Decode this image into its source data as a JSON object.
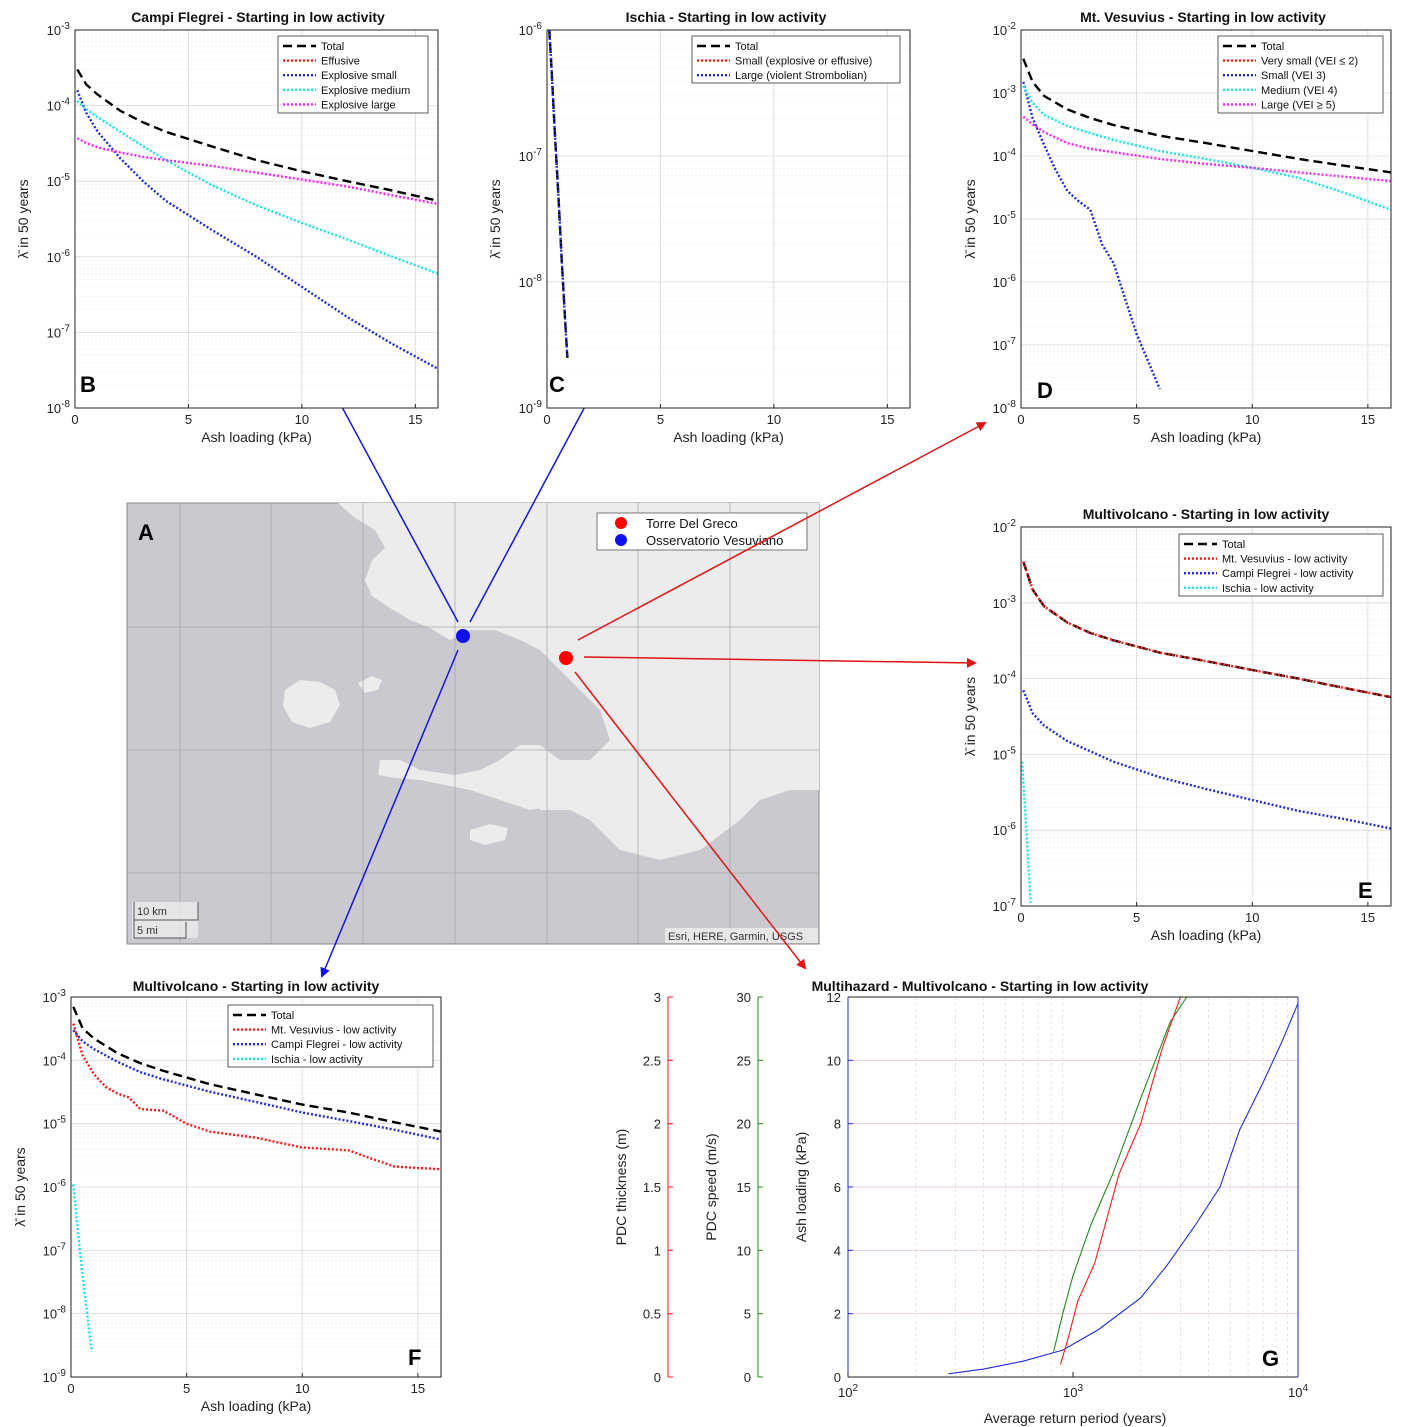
{
  "colors": {
    "total": "#000000",
    "red": "#ff1a1a",
    "blue": "#1f2bd6",
    "cyan": "#18e4e4",
    "magenta": "#ff22ff",
    "green": "#1e8a1e",
    "arrow_blue": "#1414e0",
    "arrow_red": "#e01414",
    "map_water": "#c9c9cf",
    "map_land": "#ececec"
  },
  "map": {
    "label": "A",
    "legend": [
      "Torre Del Greco",
      "Osservatorio Vesuviano"
    ],
    "scale_km": "10 km",
    "scale_mi": "5 mi",
    "attribution": "Esri, HERE, Garmin, USGS"
  },
  "chart_data": [
    {
      "id": "B",
      "type": "line",
      "scale": "semilogy",
      "title": "Campi Flegrei - Starting in low activity",
      "xlabel": "Ash loading (kPa)",
      "ylabel": "λ̄  in 50 years",
      "xlim": [
        0,
        16
      ],
      "ylim": [
        1e-08,
        0.001
      ],
      "xticks": [
        "0",
        "5",
        "10",
        "15"
      ],
      "yticks": [
        "10^-8",
        "10^-7",
        "10^-6",
        "10^-5",
        "10^-4",
        "10^-3"
      ],
      "legend": "top-right",
      "grid": true,
      "series": [
        {
          "name": "Total",
          "style": "dash",
          "color": "total",
          "x": [
            0.1,
            0.5,
            1,
            2,
            3,
            4,
            6,
            8,
            10,
            12,
            14,
            16
          ],
          "y": [
            0.0003,
            0.00019,
            0.00014,
            8.5e-05,
            6e-05,
            4.5e-05,
            2.9e-05,
            1.9e-05,
            1.35e-05,
            1e-05,
            7.5e-06,
            5.5e-06
          ]
        },
        {
          "name": "Effusive",
          "style": "dot",
          "color": "red",
          "x": [],
          "y": []
        },
        {
          "name": "Explosive small",
          "style": "dot",
          "color": "blue",
          "x": [
            0.1,
            0.5,
            1,
            2,
            3,
            4,
            6,
            8,
            10,
            12,
            14,
            16
          ],
          "y": [
            0.00016,
            8e-05,
            4.5e-05,
            2e-05,
            1e-05,
            5.5e-06,
            2.3e-06,
            1e-06,
            4e-07,
            1.6e-07,
            7e-08,
            3.3e-08
          ]
        },
        {
          "name": "Explosive medium",
          "style": "dot",
          "color": "cyan",
          "x": [
            0.1,
            0.5,
            1,
            2,
            3,
            4,
            6,
            8,
            10,
            12,
            14,
            16
          ],
          "y": [
            0.000115,
            9e-05,
            7e-05,
            4.5e-05,
            2.9e-05,
            1.9e-05,
            9e-06,
            4.8e-06,
            2.8e-06,
            1.7e-06,
            1e-06,
            6e-07
          ]
        },
        {
          "name": "Explosive large",
          "style": "dot",
          "color": "magenta",
          "x": [
            0.1,
            0.5,
            1,
            2,
            3,
            4,
            6,
            8,
            10,
            12,
            14,
            16
          ],
          "y": [
            3.7e-05,
            3.2e-05,
            2.8e-05,
            2.4e-05,
            2.1e-05,
            1.9e-05,
            1.6e-05,
            1.3e-05,
            1.05e-05,
            8.5e-06,
            6.5e-06,
            5e-06
          ]
        }
      ]
    },
    {
      "id": "C",
      "type": "line",
      "scale": "semilogy",
      "title": "Ischia - Starting in low activity",
      "xlabel": "Ash loading (kPa)",
      "ylabel": "λ̄  in 50 years",
      "xlim": [
        0,
        16
      ],
      "ylim": [
        1e-09,
        1e-06
      ],
      "xticks": [
        "0",
        "5",
        "10",
        "15"
      ],
      "yticks": [
        "10^-9",
        "10^-8",
        "10^-7",
        "10^-6"
      ],
      "legend": "top-right",
      "grid": true,
      "series": [
        {
          "name": "Total",
          "style": "dash",
          "color": "total",
          "x": [
            0.1,
            0.2,
            0.35,
            0.5,
            0.65,
            0.8,
            0.9
          ],
          "y": [
            1e-06,
            5e-07,
            1.5e-07,
            5e-08,
            1.5e-08,
            5e-09,
            2.5e-09
          ]
        },
        {
          "name": "Small (explosive or effusive)",
          "style": "dot",
          "color": "red",
          "x": [],
          "y": []
        },
        {
          "name": "Large (violent Strombolian)",
          "style": "dot",
          "color": "blue",
          "x": [
            0.1,
            0.2,
            0.35,
            0.5,
            0.65,
            0.8,
            0.9
          ],
          "y": [
            1e-06,
            5e-07,
            1.5e-07,
            5e-08,
            1.5e-08,
            5e-09,
            2.5e-09
          ]
        }
      ]
    },
    {
      "id": "D",
      "type": "line",
      "scale": "semilogy",
      "title": "Mt. Vesuvius - Starting in low activity",
      "xlabel": "Ash loading (kPa)",
      "ylabel": "λ̄  in 50 years",
      "xlim": [
        0,
        16
      ],
      "ylim": [
        1e-08,
        0.01
      ],
      "xticks": [
        "0",
        "5",
        "10",
        "15"
      ],
      "yticks": [
        "10^-8",
        "10^-7",
        "10^-6",
        "10^-5",
        "10^-4",
        "10^-3",
        "10^-2"
      ],
      "legend": "top-right",
      "grid": true,
      "series": [
        {
          "name": "Total",
          "style": "dash",
          "color": "total",
          "x": [
            0.1,
            0.5,
            1,
            2,
            3,
            4,
            6,
            8,
            10,
            12,
            14,
            16
          ],
          "y": [
            0.0035,
            0.0015,
            0.0009,
            0.00055,
            0.0004,
            0.00031,
            0.00021,
            0.00016,
            0.00012,
            9e-05,
            7e-05,
            5.5e-05
          ]
        },
        {
          "name": "Very small (VEI ≤ 2)",
          "style": "dot",
          "color": "red",
          "x": [],
          "y": []
        },
        {
          "name": "Small (VEI 3)",
          "style": "dot",
          "color": "blue",
          "x": [
            0.1,
            0.5,
            1,
            1.5,
            2,
            2.5,
            3,
            3.5,
            4,
            5,
            6
          ],
          "y": [
            0.0015,
            0.0004,
            0.00015,
            6e-05,
            2.8e-05,
            1.9e-05,
            1.4e-05,
            4e-06,
            2e-06,
            1.5e-07,
            2e-08
          ]
        },
        {
          "name": "Medium (VEI 4)",
          "style": "dot",
          "color": "cyan",
          "x": [
            0.1,
            0.5,
            1,
            2,
            3,
            4,
            6,
            8,
            10,
            12,
            14,
            16
          ],
          "y": [
            0.0013,
            0.0007,
            0.00045,
            0.0003,
            0.00023,
            0.00018,
            0.00012,
            9e-05,
            6.5e-05,
            4.5e-05,
            2.6e-05,
            1.4e-05
          ]
        },
        {
          "name": "Large (VEI ≥ 5)",
          "style": "dot",
          "color": "magenta",
          "x": [
            0.1,
            0.5,
            1,
            2,
            3,
            4,
            6,
            8,
            10,
            12,
            14,
            16
          ],
          "y": [
            0.00042,
            0.00032,
            0.00024,
            0.00016,
            0.00013,
            0.000115,
            9e-05,
            7.5e-05,
            6.5e-05,
            5.5e-05,
            4.7e-05,
            4e-05
          ]
        }
      ]
    },
    {
      "id": "E",
      "type": "line",
      "scale": "semilogy",
      "title": "Multivolcano - Starting in low activity",
      "xlabel": "Ash loading (kPa)",
      "ylabel": "λ̄  in 50 years",
      "xlim": [
        0,
        16
      ],
      "ylim": [
        1e-07,
        0.01
      ],
      "xticks": [
        "0",
        "5",
        "10",
        "15"
      ],
      "yticks": [
        "10^-7",
        "10^-6",
        "10^-5",
        "10^-4",
        "10^-3",
        "10^-2"
      ],
      "legend": "top-right",
      "grid": true,
      "series": [
        {
          "name": "Total",
          "style": "dash",
          "color": "total",
          "x": [
            0.1,
            0.5,
            1,
            2,
            3,
            4,
            6,
            8,
            10,
            12,
            14,
            16
          ],
          "y": [
            0.0035,
            0.0015,
            0.0009,
            0.00055,
            0.0004,
            0.00032,
            0.00022,
            0.00017,
            0.00013,
            0.0001,
            7.5e-05,
            5.7e-05
          ]
        },
        {
          "name": "Mt. Vesuvius - low activity",
          "style": "dot",
          "color": "red",
          "x": [
            0.1,
            0.5,
            1,
            2,
            3,
            4,
            6,
            8,
            10,
            12,
            14,
            16
          ],
          "y": [
            0.0035,
            0.0015,
            0.0009,
            0.00055,
            0.0004,
            0.00032,
            0.00022,
            0.00017,
            0.00013,
            0.0001,
            7.5e-05,
            5.7e-05
          ]
        },
        {
          "name": "Campi Flegrei - low activity",
          "style": "dot",
          "color": "blue",
          "x": [
            0.1,
            0.5,
            1,
            2,
            3,
            4,
            6,
            8,
            10,
            12,
            14,
            16
          ],
          "y": [
            7e-05,
            3.5e-05,
            2.4e-05,
            1.5e-05,
            1.1e-05,
            8e-06,
            5e-06,
            3.5e-06,
            2.5e-06,
            1.8e-06,
            1.4e-06,
            1.05e-06
          ]
        },
        {
          "name": "Ischia - low activity",
          "style": "dot",
          "color": "cyan",
          "x": [
            0.05,
            0.15,
            0.25,
            0.35,
            0.42
          ],
          "y": [
            8e-06,
            2.5e-06,
            8e-07,
            2.5e-07,
            1.1e-07
          ]
        }
      ]
    },
    {
      "id": "F",
      "type": "line",
      "scale": "semilogy",
      "title": "Multivolcano - Starting in low activity",
      "xlabel": "Ash loading (kPa)",
      "ylabel": "λ̄  in 50 years",
      "xlim": [
        0,
        16
      ],
      "ylim": [
        1e-09,
        0.001
      ],
      "xticks": [
        "0",
        "5",
        "10",
        "15"
      ],
      "yticks": [
        "10^-9",
        "10^-8",
        "10^-7",
        "10^-6",
        "10^-5",
        "10^-4",
        "10^-3"
      ],
      "legend": "top-right",
      "grid": true,
      "series": [
        {
          "name": "Total",
          "style": "dash",
          "color": "total",
          "x": [
            0.1,
            0.5,
            1,
            2,
            3,
            4,
            6,
            8,
            10,
            12,
            14,
            16
          ],
          "y": [
            0.0007,
            0.00032,
            0.00022,
            0.00013,
            9e-05,
            6.8e-05,
            4.2e-05,
            2.9e-05,
            2e-05,
            1.5e-05,
            1.05e-05,
            7.5e-06
          ]
        },
        {
          "name": "Mt. Vesuvius - low activity",
          "style": "dot",
          "color": "red",
          "x": [
            0.1,
            0.5,
            1,
            1.5,
            2,
            2.5,
            3,
            4,
            5,
            6,
            8,
            10,
            12,
            13,
            14,
            16
          ],
          "y": [
            0.00038,
            0.00012,
            6e-05,
            3.8e-05,
            3e-05,
            2.6e-05,
            1.7e-05,
            1.6e-05,
            1e-05,
            7.5e-06,
            6e-06,
            4.2e-06,
            3.8e-06,
            2.8e-06,
            2.1e-06,
            1.9e-06
          ]
        },
        {
          "name": "Campi Flegrei - low activity",
          "style": "dot",
          "color": "blue",
          "x": [
            0.1,
            0.5,
            1,
            2,
            3,
            4,
            6,
            8,
            10,
            12,
            14,
            16
          ],
          "y": [
            0.0003,
            0.0002,
            0.00015,
            9.5e-05,
            6.5e-05,
            5e-05,
            3.2e-05,
            2.2e-05,
            1.5e-05,
            1.1e-05,
            8e-06,
            5.6e-06
          ]
        },
        {
          "name": "Ischia - low activity",
          "style": "dot",
          "color": "cyan",
          "x": [
            0.1,
            0.3,
            0.5,
            0.7,
            0.9
          ],
          "y": [
            1.1e-06,
            2e-07,
            4e-08,
            1e-08,
            2.5e-09
          ]
        }
      ]
    },
    {
      "id": "G",
      "type": "line",
      "scale": "semilogx",
      "title": "Multihazard - Multivolcano - Starting in low activity",
      "xlabel": "Average return period (years)",
      "xlim": [
        100,
        10000
      ],
      "xticks": [
        "10^2",
        "10^3",
        "10^4"
      ],
      "axes": [
        {
          "label": "PDC thickness (m)",
          "color": "red",
          "ylim": [
            0,
            3
          ],
          "ticks": [
            "0",
            "0.5",
            "1",
            "1.5",
            "2",
            "2.5",
            "3"
          ]
        },
        {
          "label": "PDC speed (m/s)",
          "color": "green",
          "ylim": [
            0,
            30
          ],
          "ticks": [
            "0",
            "5",
            "10",
            "15",
            "20",
            "25",
            "30"
          ]
        },
        {
          "label": "Ash loading (kPa)",
          "color": "blue",
          "ylim": [
            0,
            12
          ],
          "ticks": [
            "0",
            "2",
            "4",
            "6",
            "8",
            "10",
            "12"
          ]
        }
      ],
      "grid": true,
      "series": [
        {
          "axis": 2,
          "color": "blue",
          "x": [
            280,
            400,
            600,
            900,
            1300,
            2000,
            2600,
            3500,
            4500,
            5500,
            7000,
            8500,
            10000
          ],
          "y": [
            0.1,
            0.25,
            0.5,
            0.85,
            1.5,
            2.5,
            3.5,
            4.8,
            6,
            7.8,
            9.3,
            10.6,
            11.8
          ]
        },
        {
          "axis": 1,
          "color": "green",
          "x": [
            820,
            900,
            1000,
            1200,
            1500,
            2000,
            2700,
            3200
          ],
          "y": [
            2,
            5,
            8,
            12,
            16,
            22,
            28,
            30
          ]
        },
        {
          "axis": 0,
          "color": "red",
          "x": [
            880,
            950,
            1050,
            1250,
            1600,
            2000,
            2500,
            3000
          ],
          "y": [
            0.1,
            0.3,
            0.6,
            0.9,
            1.6,
            2,
            2.6,
            3
          ]
        }
      ],
      "label": "G"
    }
  ]
}
